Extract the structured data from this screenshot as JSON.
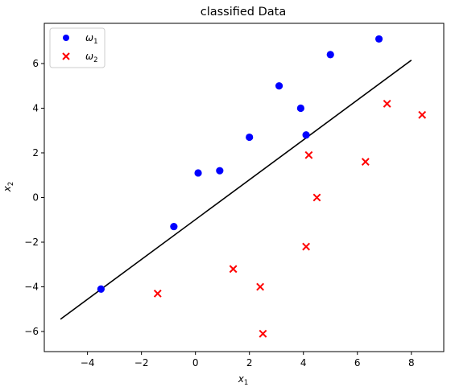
{
  "chart_data": {
    "type": "scatter",
    "title": "classified Data",
    "xlabel": {
      "base": "x",
      "sub": "1"
    },
    "ylabel": {
      "base": "x",
      "sub": "2"
    },
    "xlim": [
      -5.6,
      9.2
    ],
    "ylim": [
      -6.9,
      7.8
    ],
    "xticks": [
      -4,
      -2,
      0,
      2,
      4,
      6,
      8
    ],
    "yticks": [
      -6,
      -4,
      -2,
      0,
      2,
      4,
      6
    ],
    "legend_position": "upper-left",
    "series": [
      {
        "name": {
          "base": "ω",
          "sub": "1"
        },
        "marker": "circle",
        "color": "#0000ff",
        "points": [
          [
            -3.5,
            -4.1
          ],
          [
            -0.8,
            -1.3
          ],
          [
            0.1,
            1.1
          ],
          [
            0.9,
            1.2
          ],
          [
            2.0,
            2.7
          ],
          [
            3.1,
            5.0
          ],
          [
            3.9,
            4.0
          ],
          [
            4.1,
            2.8
          ],
          [
            5.0,
            6.4
          ],
          [
            6.8,
            7.1
          ]
        ]
      },
      {
        "name": {
          "base": "ω",
          "sub": "2"
        },
        "marker": "x",
        "color": "#ff0000",
        "points": [
          [
            -1.4,
            -4.3
          ],
          [
            1.4,
            -3.2
          ],
          [
            2.4,
            -4.0
          ],
          [
            2.5,
            -6.1
          ],
          [
            4.1,
            -2.2
          ],
          [
            4.2,
            1.9
          ],
          [
            4.5,
            0.0
          ],
          [
            6.3,
            1.6
          ],
          [
            7.1,
            4.2
          ],
          [
            8.4,
            3.7
          ]
        ]
      }
    ],
    "decision_boundary": {
      "color": "#000000",
      "points": [
        [
          -5.0,
          -5.45
        ],
        [
          8.0,
          6.15
        ]
      ]
    }
  }
}
